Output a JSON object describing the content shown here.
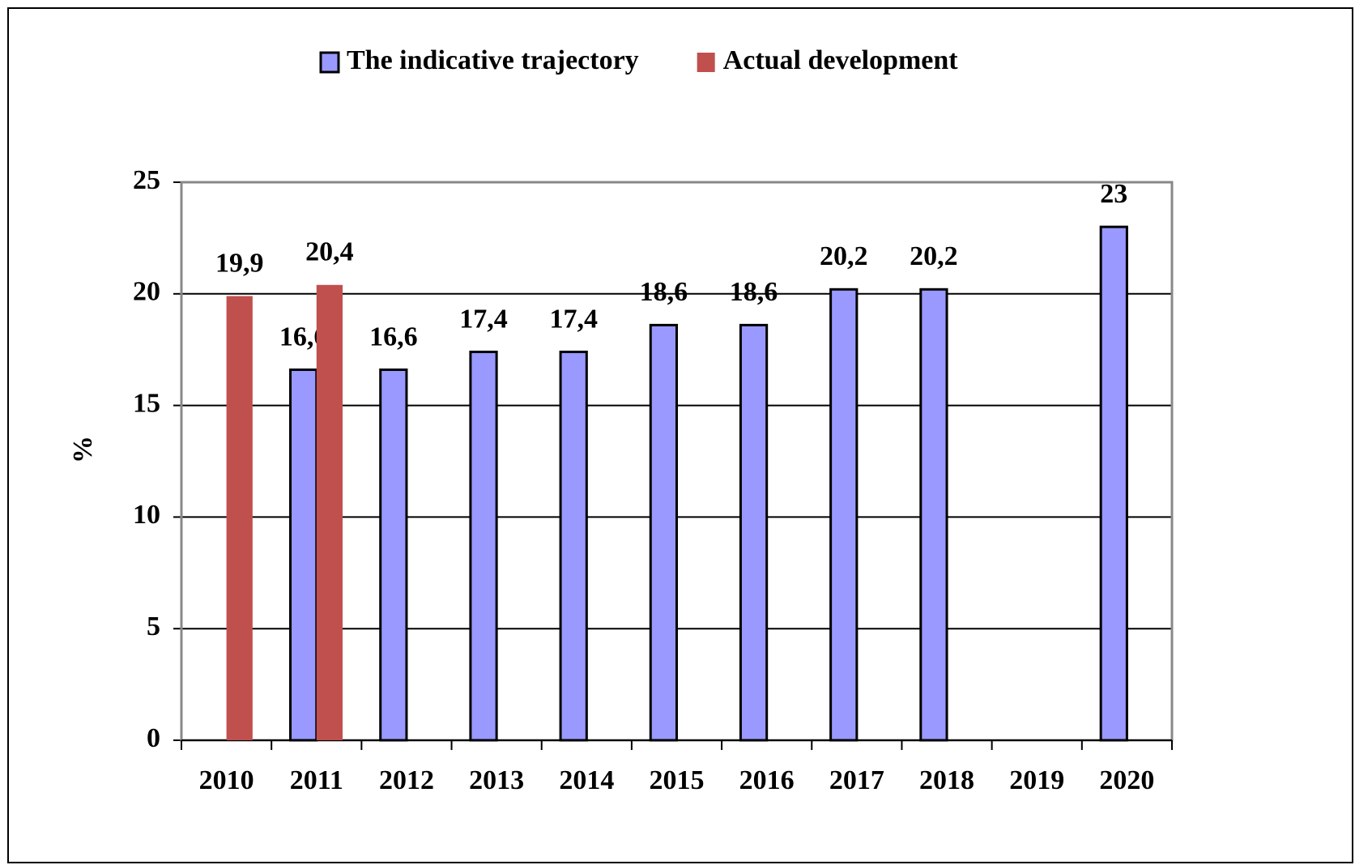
{
  "chart_data": {
    "type": "bar",
    "y_label": "%",
    "categories": [
      "2010",
      "2011",
      "2012",
      "2013",
      "2014",
      "2015",
      "2016",
      "2017",
      "2018",
      "2019",
      "2020"
    ],
    "series": [
      {
        "name": "The indicative trajectory",
        "color": "#9999ff",
        "values": [
          null,
          16.6,
          16.6,
          17.4,
          17.4,
          18.6,
          18.6,
          20.2,
          20.2,
          null,
          23
        ],
        "value_labels": [
          null,
          "16,6",
          "16,6",
          "17,4",
          "17,4",
          "18,6",
          "18,6",
          "20,2",
          "20,2",
          null,
          "23"
        ]
      },
      {
        "name": "Actual development",
        "color": "#c0504d",
        "values": [
          19.9,
          20.4,
          null,
          null,
          null,
          null,
          null,
          null,
          null,
          null,
          null
        ],
        "value_labels": [
          "19,9",
          "20,4",
          null,
          null,
          null,
          null,
          null,
          null,
          null,
          null,
          null
        ]
      }
    ],
    "ylim": [
      0,
      25
    ],
    "yticks": [
      0,
      5,
      10,
      15,
      20,
      25
    ],
    "grid": true,
    "legend": "top"
  }
}
